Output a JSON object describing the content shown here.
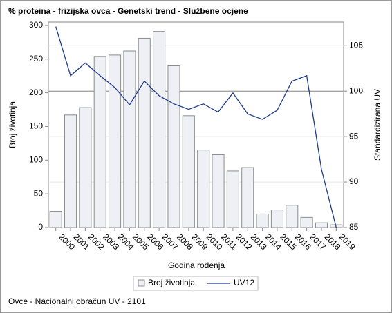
{
  "chart_data": {
    "type": "bar_line",
    "title": "% proteina - frizijska ovca - Genetski trend - Službene ocjene",
    "footnote": "Ovce - Nacionalni obračun UV - 2101",
    "xlabel": "Godina rođenja",
    "ylabel": "Broj životinja",
    "y2label": "Standardizirana UV",
    "categories": [
      "2000",
      "2001",
      "2002",
      "2003",
      "2004",
      "2005",
      "2006",
      "2007",
      "2008",
      "2009",
      "2010",
      "2011",
      "2012",
      "2013",
      "2014",
      "2015",
      "2016",
      "2017",
      "2018",
      "2019"
    ],
    "series": [
      {
        "name": "Broj životinja",
        "type": "bar",
        "color": "#eef0f5",
        "stroke": "#8c8c8c",
        "values": [
          24,
          167,
          178,
          254,
          256,
          262,
          281,
          291,
          240,
          166,
          115,
          108,
          84,
          89,
          20,
          26,
          33,
          15,
          7,
          4
        ]
      },
      {
        "name": "UV12",
        "type": "line",
        "axis": "y2",
        "color": "#1f3b8c",
        "values": [
          107.1,
          101.7,
          103.1,
          101.7,
          100.4,
          98.5,
          101.1,
          99.5,
          98.6,
          98.0,
          98.6,
          97.7,
          99.8,
          97.5,
          96.9,
          97.9,
          101.1,
          101.7,
          91.4,
          85.0
        ]
      }
    ],
    "ylim": [
      0,
      305
    ],
    "yticks": [
      0,
      50,
      100,
      150,
      200,
      250,
      300
    ],
    "y2lim": [
      85,
      107.6
    ],
    "y2ticks": [
      85,
      90,
      95,
      100,
      105
    ],
    "y2_refline": 100,
    "grid": true
  }
}
